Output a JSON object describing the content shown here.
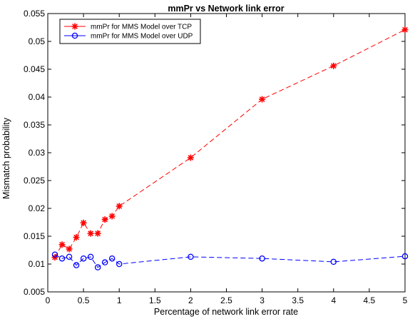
{
  "chart_data": {
    "type": "line",
    "title": "mmPr vs Network link error",
    "xlabel": "Percentage of network link error rate",
    "ylabel": "Mismatch probability",
    "xlim": [
      0,
      5
    ],
    "ylim": [
      0.005,
      0.055
    ],
    "x_ticks": [
      "0",
      "0.5",
      "1",
      "1.5",
      "2",
      "2.5",
      "3",
      "3.5",
      "4",
      "4.5",
      "5"
    ],
    "y_ticks": [
      "0.005",
      "0.01",
      "0.015",
      "0.02",
      "0.025",
      "0.03",
      "0.035",
      "0.04",
      "0.045",
      "0.05",
      "0.055"
    ],
    "grid": false,
    "legend_position": "top-left",
    "series": [
      {
        "name": "mmPr for  MMS Model over TCP",
        "color": "#ff0000",
        "line_style": "dashed",
        "marker": "asterisk",
        "x": [
          0.1,
          0.2,
          0.3,
          0.4,
          0.5,
          0.6,
          0.7,
          0.8,
          0.9,
          1.0,
          2.0,
          3.0,
          4.0,
          5.0
        ],
        "y": [
          0.0112,
          0.0135,
          0.0127,
          0.0148,
          0.0174,
          0.0155,
          0.0155,
          0.018,
          0.0186,
          0.0204,
          0.0291,
          0.0396,
          0.0456,
          0.0521
        ]
      },
      {
        "name": "mmPr for  MMS Model over UDP",
        "color": "#0000ff",
        "line_style": "dashed",
        "marker": "circle",
        "x": [
          0.1,
          0.2,
          0.3,
          0.4,
          0.5,
          0.6,
          0.7,
          0.8,
          0.9,
          1.0,
          2.0,
          3.0,
          4.0,
          5.0
        ],
        "y": [
          0.0117,
          0.011,
          0.0113,
          0.0098,
          0.011,
          0.0113,
          0.0094,
          0.0103,
          0.011,
          0.01,
          0.0113,
          0.011,
          0.0104,
          0.0114
        ]
      }
    ]
  }
}
